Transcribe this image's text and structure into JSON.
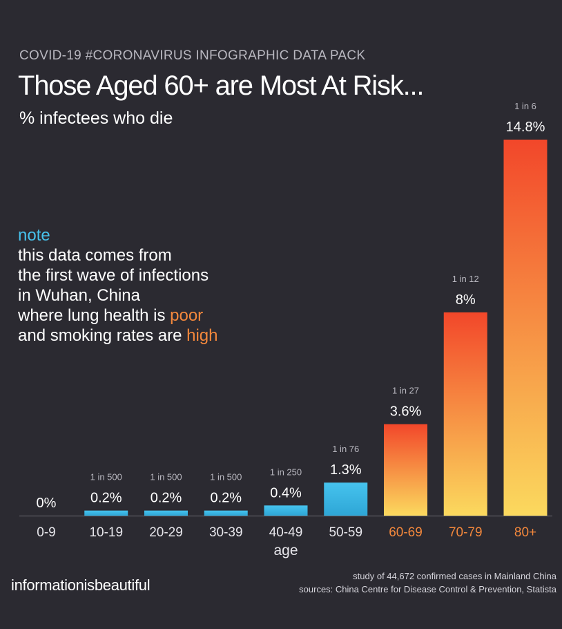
{
  "header": {
    "kicker": "COVID-19 #CORONAVIRUS INFOGRAPHIC DATA PACK",
    "title": "Those Aged 60+ are Most At Risk...",
    "subtitle": "% infectees who die"
  },
  "note": {
    "heading": "note",
    "line1": "this data comes from",
    "line2": "the first wave of infections",
    "line3": "in Wuhan, China",
    "line4_pre": "where lung health is ",
    "line4_hl": "poor",
    "line5_pre": "and smoking rates are ",
    "line5_hl": "high"
  },
  "footer": {
    "brand": "informationisbeautiful",
    "study": "study of 44,672 confirmed cases in Mainland China",
    "sources": "sources: China Centre for Disease Control & Prevention, Statista"
  },
  "colors": {
    "background": "#2b2a31",
    "young_bar": "#3fb6e0",
    "old_bar_top": "#f2472a",
    "old_bar_bottom": "#fbd95e",
    "old_label": "#f4883c",
    "note_accent": "#47c2ec"
  },
  "chart_data": {
    "type": "bar",
    "xlabel": "age",
    "categories": [
      "0-9",
      "10-19",
      "20-29",
      "30-39",
      "40-49",
      "50-59",
      "60-69",
      "70-79",
      "80+"
    ],
    "values": [
      0,
      0.2,
      0.2,
      0.2,
      0.4,
      1.3,
      3.6,
      8,
      14.8
    ],
    "value_labels": [
      "0%",
      "0.2%",
      "0.2%",
      "0.2%",
      "0.4%",
      "1.3%",
      "3.6%",
      "8%",
      "14.8%"
    ],
    "ratio_labels": [
      "",
      "1 in 500",
      "1 in 500",
      "1 in 500",
      "1 in 250",
      "1 in 76",
      "1 in 27",
      "1 in 12",
      "1 in 6"
    ],
    "highlight": [
      false,
      false,
      false,
      false,
      false,
      false,
      true,
      true,
      true
    ]
  }
}
